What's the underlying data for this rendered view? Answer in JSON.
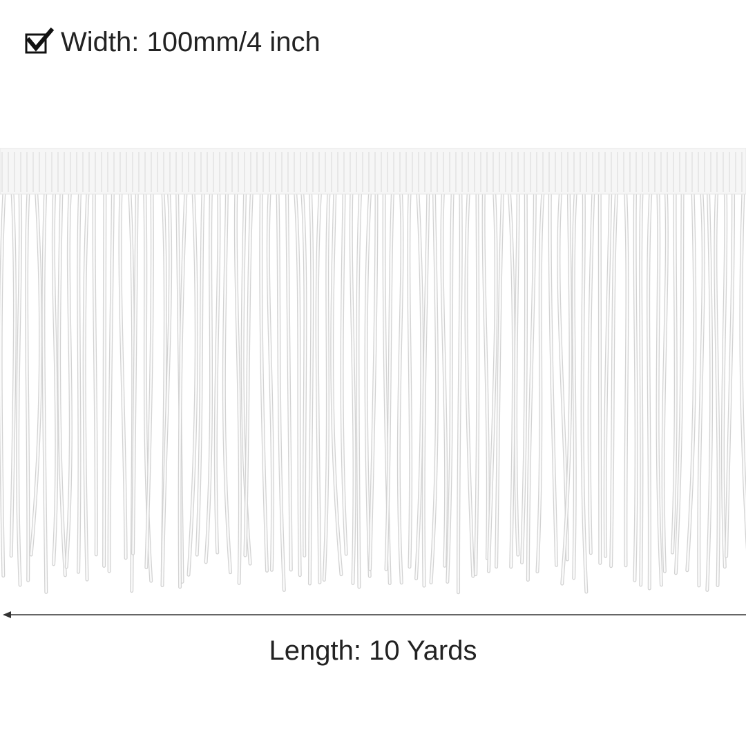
{
  "width_label": "Width: 100mm/4 inch",
  "length_label": "Length: 10 Yards"
}
